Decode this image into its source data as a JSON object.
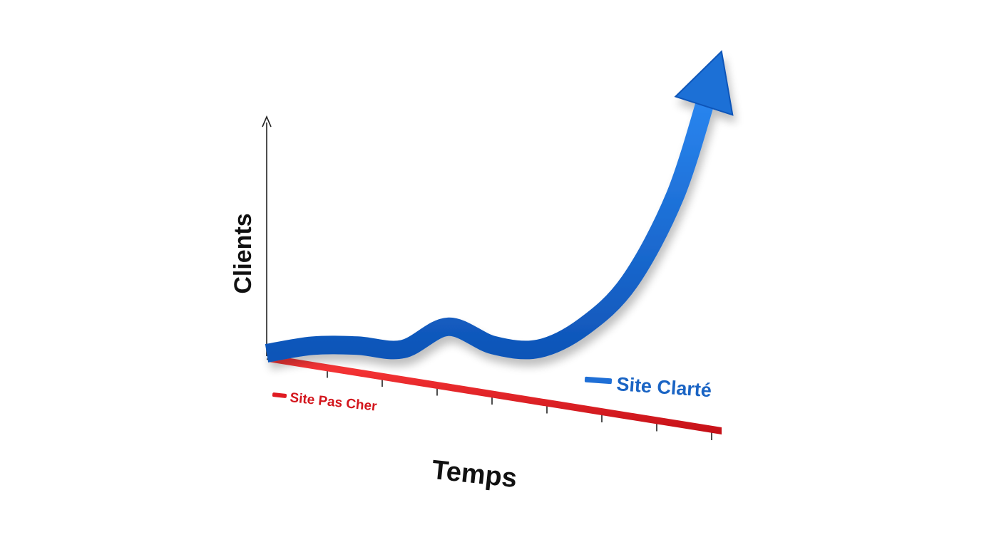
{
  "chart_data": {
    "type": "line",
    "title": "",
    "xlabel": "Temps",
    "ylabel": "Clients",
    "x": [
      0,
      1,
      2,
      3,
      4,
      5,
      6,
      7,
      8,
      9,
      10
    ],
    "xlim": [
      0,
      10
    ],
    "ylim": [
      0,
      10
    ],
    "grid": false,
    "legend_placement": "inline",
    "series": [
      {
        "name": "Site Clarté",
        "color": "#1f6fd6",
        "values": [
          0.0,
          0.4,
          0.6,
          0.7,
          1.5,
          1.2,
          1.3,
          2.1,
          3.5,
          6.0,
          10.0
        ]
      },
      {
        "name": "Site Pas Cher",
        "color": "#e01b22",
        "values": [
          0,
          0,
          0,
          0,
          0,
          0,
          0,
          0,
          0,
          0,
          0
        ]
      }
    ]
  }
}
